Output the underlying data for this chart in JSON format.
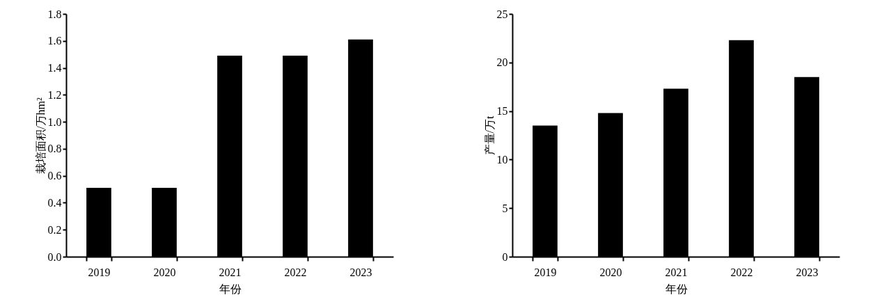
{
  "chart_data": [
    {
      "type": "bar",
      "categories": [
        "2019",
        "2020",
        "2021",
        "2022",
        "2023"
      ],
      "values": [
        0.51,
        0.51,
        1.49,
        1.49,
        1.61
      ],
      "color": "#000000",
      "xlabel": "年份",
      "ylabel": "栽培面积/万hm²",
      "ylim": [
        0,
        1.8
      ],
      "yticks": [
        {
          "value": 0,
          "label": "0.0"
        },
        0.2,
        0.4,
        0.6,
        0.8,
        {
          "value": 1,
          "label": "1.0"
        },
        1.2,
        1.4,
        1.6,
        1.8
      ]
    },
    {
      "type": "bar",
      "categories": [
        "2019",
        "2020",
        "2021",
        "2022",
        "2023"
      ],
      "values": [
        13.5,
        14.8,
        17.3,
        22.3,
        18.5
      ],
      "color": "#000000",
      "xlabel": "年份",
      "ylabel": "产量/万t",
      "ylim": [
        0,
        25
      ],
      "yticks": [
        0,
        5,
        10,
        15,
        20,
        25
      ]
    }
  ]
}
